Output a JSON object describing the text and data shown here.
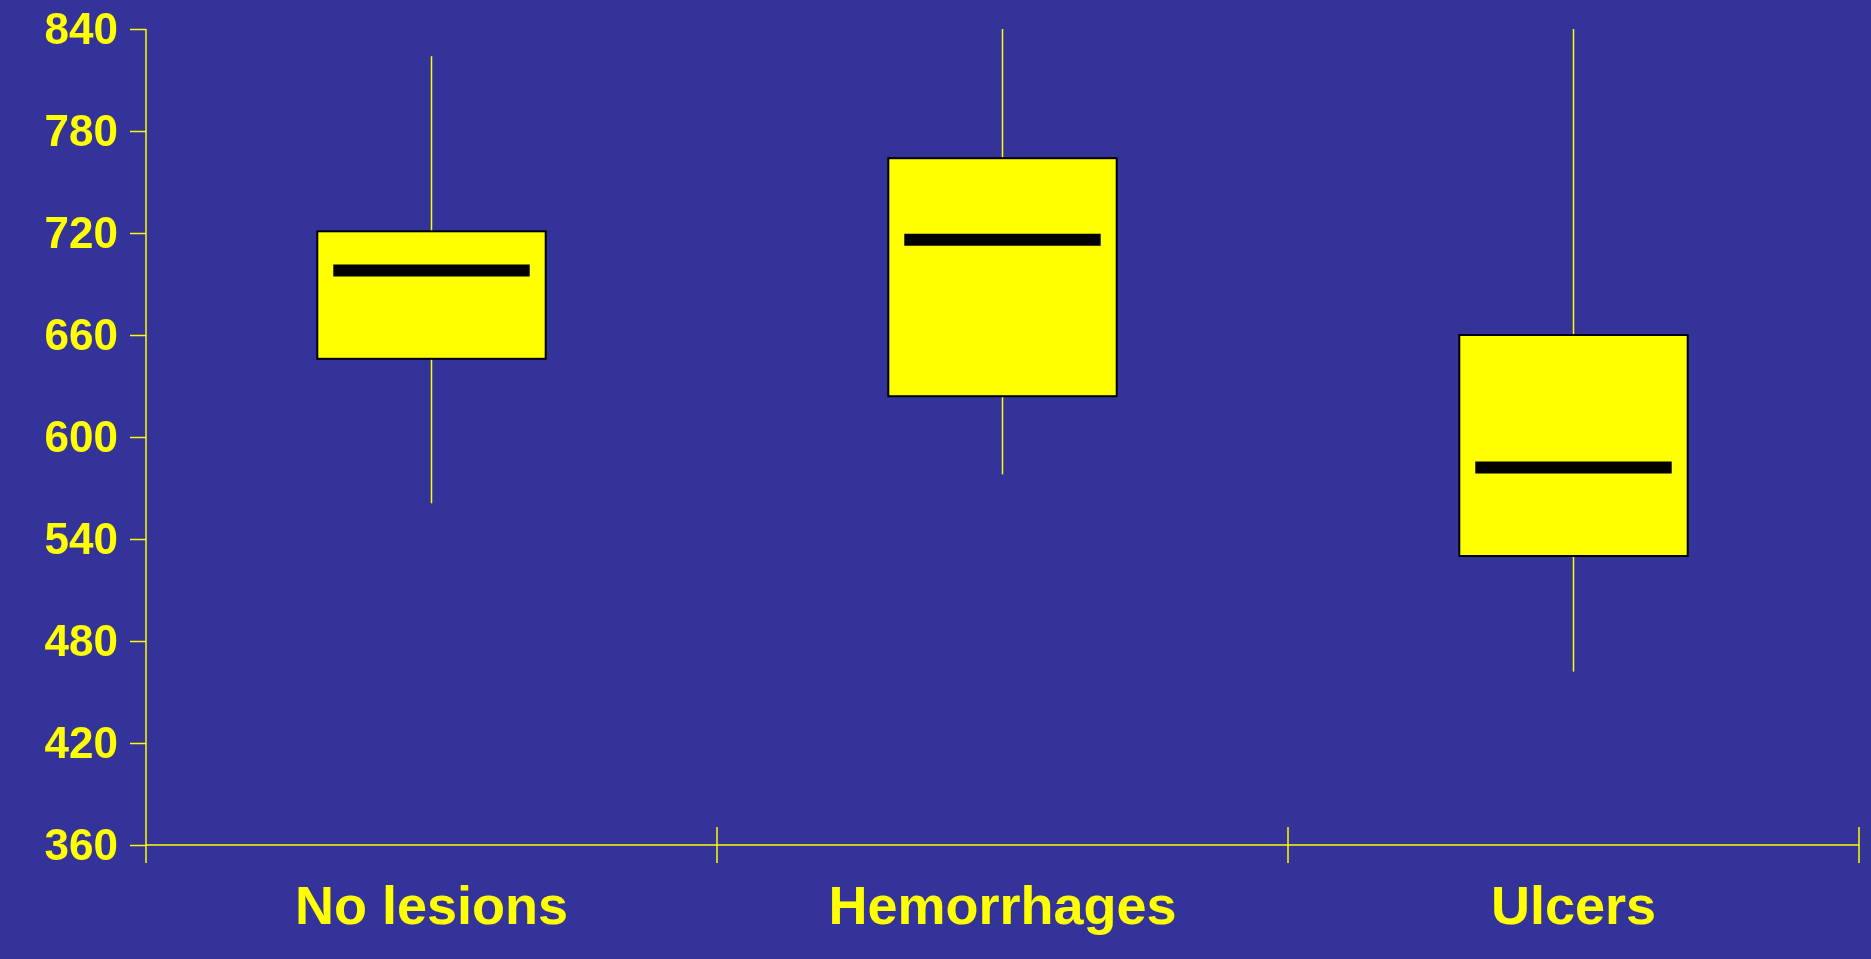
{
  "chart_data": {
    "type": "box",
    "categories": [
      "No lesions",
      "Hemorrhages",
      "Ulcers"
    ],
    "boxes": [
      {
        "low": 561,
        "q1": 646,
        "median": 698,
        "q3": 721,
        "high": 824
      },
      {
        "low": 578,
        "q1": 624,
        "median": 716,
        "q3": 764,
        "high": 840
      },
      {
        "low": 462,
        "q1": 530,
        "median": 582,
        "q3": 660,
        "high": 840
      }
    ],
    "color": "#ffff00",
    "ylim": [
      360,
      840
    ],
    "yticks": [
      360,
      420,
      480,
      540,
      600,
      660,
      720,
      780,
      840
    ],
    "grid": false
  }
}
